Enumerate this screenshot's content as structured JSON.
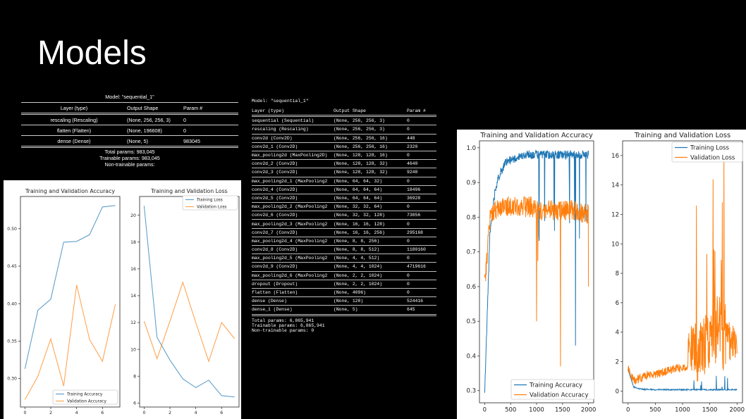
{
  "slide": {
    "title": "Models"
  },
  "summary_small": {
    "model_title": "Model: \"sequential_1\"",
    "headers": [
      "Layer (type)",
      "Output Shape",
      "Param #"
    ],
    "rows": [
      [
        "rescaling (Rescaling)",
        "(None, 256, 256, 3)",
        "0"
      ],
      [
        "flatten (Flatten)",
        "(None, 196608)",
        "0"
      ],
      [
        "dense (Dense)",
        "(None, 5)",
        "983045"
      ]
    ],
    "total": "Total params: 983,045",
    "trainable": "Trainable params: 983,045",
    "non_trainable": "Non-trainable params:"
  },
  "summary_large": {
    "model_title": "Model: \"sequential_1\"",
    "headers": [
      "Layer (type)",
      "Output Shape",
      "Param #"
    ],
    "rows": [
      [
        "sequential (Sequential)",
        "(None, 256, 256, 3)",
        "0"
      ],
      [
        "rescaling (Rescaling)",
        "(None, 256, 256, 3)",
        "0"
      ],
      [
        "conv2d (Conv2D)",
        "(None, 256, 256, 16)",
        "448"
      ],
      [
        "conv2d_1 (Conv2D)",
        "(None, 256, 256, 16)",
        "2320"
      ],
      [
        "max_pooling2d (MaxPooling2D)",
        "(None, 128, 128, 16)",
        "0"
      ],
      [
        "conv2d_2 (Conv2D)",
        "(None, 128, 128, 32)",
        "4640"
      ],
      [
        "conv2d_3 (Conv2D)",
        "(None, 128, 128, 32)",
        "9248"
      ],
      [
        "max_pooling2d_1 (MaxPooling2",
        "(None, 64, 64, 32)",
        "0"
      ],
      [
        "conv2d_4 (Conv2D)",
        "(None, 64, 64, 64)",
        "18496"
      ],
      [
        "conv2d_5 (Conv2D)",
        "(None, 64, 64, 64)",
        "36928"
      ],
      [
        "max_pooling2d_2 (MaxPooling2",
        "(None, 32, 32, 64)",
        "0"
      ],
      [
        "conv2d_6 (Conv2D)",
        "(None, 32, 32, 128)",
        "73856"
      ],
      [
        "max_pooling2d_3 (MaxPooling2",
        "(None, 16, 16, 128)",
        "0"
      ],
      [
        "conv2d_7 (Conv2D)",
        "(None, 16, 16, 256)",
        "295168"
      ],
      [
        "max_pooling2d_4 (MaxPooling2",
        "(None, 8, 8, 256)",
        "0"
      ],
      [
        "conv2d_8 (Conv2D)",
        "(None, 8, 8, 512)",
        "1180160"
      ],
      [
        "max_pooling2d_5 (MaxPooling2",
        "(None, 4, 4, 512)",
        "0"
      ],
      [
        "conv2d_9 (Conv2D)",
        "(None, 4, 4, 1024)",
        "4719616"
      ],
      [
        "max_pooling2d_6 (MaxPooling2",
        "(None, 2, 2, 1024)",
        "0"
      ],
      [
        "dropout (Dropout)",
        "(None, 2, 2, 1024)",
        "0"
      ],
      [
        "flatten (Flatten)",
        "(None, 4096)",
        "0"
      ],
      [
        "dense (Dense)",
        "(None, 128)",
        "524416"
      ],
      [
        "dense_1 (Dense)",
        "(None, 5)",
        "645"
      ]
    ],
    "total": "Total params: 6,865,941",
    "trainable": "Trainable params: 6,865,941",
    "non_trainable": "Non-trainable params: 0"
  },
  "colors": {
    "training": "#1f77b4",
    "validation": "#ff7f0e"
  },
  "chart_data": [
    {
      "id": "small_acc",
      "type": "line",
      "title": "Training and Validation Accuracy",
      "x": [
        0,
        1,
        2,
        3,
        4,
        5,
        6,
        7
      ],
      "series": [
        {
          "name": "Training Accuracy",
          "values": [
            0.313,
            0.391,
            0.406,
            0.482,
            0.483,
            0.492,
            0.529,
            0.531
          ]
        },
        {
          "name": "Validation Accuracy",
          "values": [
            0.272,
            0.303,
            0.353,
            0.29,
            0.425,
            0.352,
            0.323,
            0.399
          ]
        }
      ],
      "xticks": [
        "0",
        "2",
        "4",
        "6"
      ],
      "xtick_values": [
        0,
        2,
        4,
        6
      ],
      "yticks": [
        "0.30",
        "0.35",
        "0.40",
        "0.45",
        "0.50"
      ],
      "ytick_values": [
        0.3,
        0.35,
        0.4,
        0.45,
        0.5
      ],
      "xlim": [
        -0.35,
        7.35
      ],
      "ylim": [
        0.262,
        0.543
      ],
      "legend": "lower-right",
      "grid": false
    },
    {
      "id": "small_loss",
      "type": "line",
      "title": "Training and Validation Loss",
      "x": [
        0,
        1,
        2,
        3,
        4,
        5,
        6,
        7
      ],
      "series": [
        {
          "name": "Training Loss",
          "values": [
            20.7,
            10.9,
            9.2,
            7.8,
            7.15,
            7.7,
            6.55,
            6.45
          ]
        },
        {
          "name": "Validation Loss",
          "values": [
            12.1,
            9.3,
            12.1,
            15.0,
            12.0,
            9.1,
            12.0,
            10.8
          ]
        }
      ],
      "xticks": [
        "0",
        "2",
        "4",
        "6"
      ],
      "xtick_values": [
        0,
        2,
        4,
        6
      ],
      "yticks": [
        "6",
        "8",
        "10",
        "12",
        "14",
        "16",
        "18",
        "20"
      ],
      "ytick_values": [
        6,
        8,
        10,
        12,
        14,
        16,
        18,
        20
      ],
      "xlim": [
        -0.35,
        7.35
      ],
      "ylim": [
        5.7,
        21.4
      ],
      "legend": "top-right",
      "grid": false
    },
    {
      "id": "big_acc",
      "type": "line",
      "title": "Training and Validation Accuracy",
      "x_range": [
        0,
        2000
      ],
      "series": [
        {
          "name": "Training Accuracy",
          "values": [
            0.29,
            0.75,
            0.88,
            0.93,
            0.955,
            0.965,
            0.97,
            0.975,
            0.98,
            0.98,
            0.98,
            0.98,
            0.98,
            0.98,
            0.98,
            0.98,
            0.98,
            0.98,
            0.98,
            0.98,
            0.98
          ]
        },
        {
          "name": "Validation Accuracy",
          "values": [
            0.6,
            0.79,
            0.82,
            0.83,
            0.83,
            0.83,
            0.83,
            0.83,
            0.83,
            0.83,
            0.82,
            0.82,
            0.82,
            0.82,
            0.82,
            0.82,
            0.82,
            0.82,
            0.82,
            0.81,
            0.81
          ]
        }
      ],
      "xticks": [
        "0",
        "500",
        "1000",
        "1500",
        "2000"
      ],
      "xtick_values": [
        0,
        500,
        1000,
        1500,
        2000
      ],
      "yticks": [
        "0.3",
        "0.4",
        "0.5",
        "0.6",
        "0.7",
        "0.8",
        "0.9",
        "1.0"
      ],
      "ytick_values": [
        0.3,
        0.4,
        0.5,
        0.6,
        0.7,
        0.8,
        0.9,
        1.0
      ],
      "xlim": [
        -100,
        2100
      ],
      "ylim": [
        0.265,
        1.02
      ],
      "legend": "lower-right",
      "grid": false
    },
    {
      "id": "big_loss",
      "type": "line",
      "title": "Training and Validation Loss",
      "x_range": [
        0,
        2000
      ],
      "series": [
        {
          "name": "Training Loss",
          "values": [
            1.4,
            0.25,
            0.12,
            0.08,
            0.06,
            0.05,
            0.05,
            0.05,
            0.05,
            0.05,
            0.05,
            0.05,
            0.05,
            0.05,
            0.05,
            0.05,
            0.05,
            0.05,
            0.05,
            0.05,
            0.05
          ]
        },
        {
          "name": "Validation Loss",
          "values": [
            1.5,
            0.6,
            0.75,
            0.9,
            1.0,
            1.05,
            1.15,
            1.25,
            1.35,
            1.45,
            1.5,
            1.6,
            1.8,
            2.1,
            2.4,
            2.8,
            3.2,
            3.5,
            3.2,
            2.9,
            2.6
          ]
        }
      ],
      "xticks": [
        "0",
        "500",
        "1000",
        "1500",
        "2000"
      ],
      "xtick_values": [
        0,
        500,
        1000,
        1500,
        2000
      ],
      "yticks": [
        "0",
        "2",
        "4",
        "6",
        "8",
        "10",
        "12",
        "14",
        "16"
      ],
      "ytick_values": [
        0,
        2,
        4,
        6,
        8,
        10,
        12,
        14,
        16
      ],
      "xlim": [
        -100,
        2100
      ],
      "ylim": [
        -0.8,
        17.0
      ],
      "legend": "top-right",
      "grid": false
    }
  ]
}
